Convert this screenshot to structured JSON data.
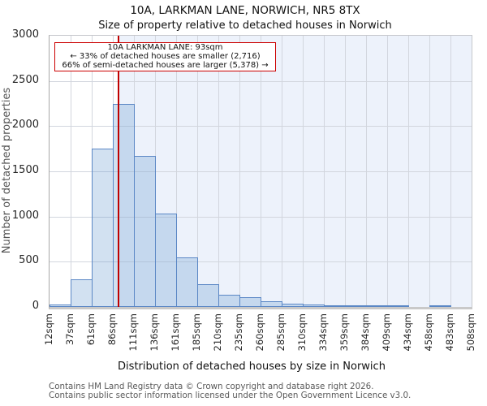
{
  "header": {
    "title": "10A, LARKMAN LANE, NORWICH, NR5 8TX",
    "subtitle": "Size of property relative to detached houses in Norwich"
  },
  "annotation": {
    "line1": "10A LARKMAN LANE: 93sqm",
    "line2": "← 33% of detached houses are smaller (2,716)",
    "line3": "66% of semi-detached houses are larger (5,378) →"
  },
  "axes": {
    "x_label": "Distribution of detached houses by size in Norwich",
    "y_label": "Number of detached properties"
  },
  "footer": {
    "line1": "Contains HM Land Registry data © Crown copyright and database right 2026.",
    "line2": "Contains public sector information licensed under the Open Government Licence v3.0."
  },
  "chart_data": {
    "type": "bar",
    "title": "10A, LARKMAN LANE, NORWICH, NR5 8TX",
    "subtitle": "Size of property relative to detached houses in Norwich",
    "xlabel": "Distribution of detached houses by size in Norwich",
    "ylabel": "Number of detached properties",
    "bin_edges_sqm": [
      12,
      37,
      61,
      86,
      111,
      136,
      161,
      185,
      210,
      235,
      260,
      285,
      310,
      334,
      359,
      384,
      409,
      434,
      458,
      483,
      508
    ],
    "x_tick_labels": [
      "12sqm",
      "37sqm",
      "61sqm",
      "86sqm",
      "111sqm",
      "136sqm",
      "161sqm",
      "185sqm",
      "210sqm",
      "235sqm",
      "260sqm",
      "285sqm",
      "310sqm",
      "334sqm",
      "359sqm",
      "384sqm",
      "409sqm",
      "434sqm",
      "458sqm",
      "483sqm",
      "508sqm"
    ],
    "values": [
      25,
      310,
      1750,
      2250,
      1670,
      1030,
      545,
      250,
      135,
      105,
      60,
      35,
      30,
      22,
      13,
      13,
      13,
      0,
      10,
      0
    ],
    "y_ticks": [
      0,
      500,
      1000,
      1500,
      2000,
      2500,
      3000
    ],
    "ylim": [
      0,
      3000
    ],
    "grid": true,
    "legend": "none",
    "marker_value_sqm": 93,
    "marker_smaller_pct": 33,
    "marker_smaller_count": "2,716",
    "marker_larger_pct": 66,
    "marker_larger_count": "5,378",
    "colors": {
      "bar_fill": "rgba(107,155,210,0.30)",
      "bar_border": "#5b87c5",
      "marker_line": "#c00000",
      "annotation_border": "#cc0000",
      "shade_right_of_marker": "#edf2fb",
      "gridline": "#d2d6de"
    }
  }
}
